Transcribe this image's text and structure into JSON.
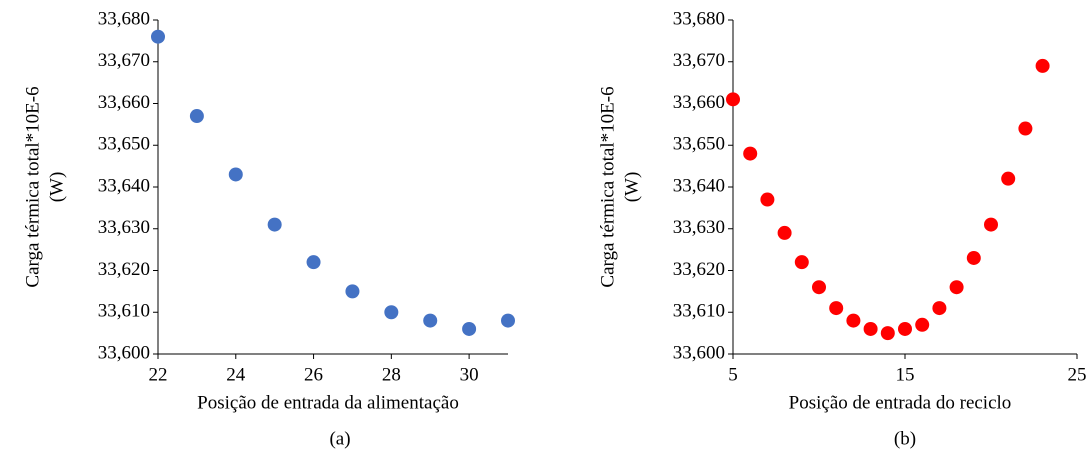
{
  "chart_data": [
    {
      "type": "scatter",
      "caption": "(a)",
      "xlabel": "Posição de entrada da alimentação",
      "ylabel": [
        "Carga térmica total*10E-6",
        "(W)"
      ],
      "x": [
        22,
        23,
        24,
        25,
        26,
        27,
        28,
        29,
        30,
        31
      ],
      "series": [
        {
          "color": "#4472c4",
          "values": [
            33.676,
            33.657,
            33.643,
            33.631,
            33.622,
            33.615,
            33.61,
            33.608,
            33.606,
            33.608
          ]
        }
      ],
      "xlim": [
        22,
        31
      ],
      "xticks": [
        22,
        24,
        26,
        28,
        30
      ],
      "ylim": [
        33.6,
        33.68
      ],
      "yticks": [
        {
          "value": 33.6,
          "label": "33,600"
        },
        {
          "value": 33.61,
          "label": "33,610"
        },
        {
          "value": 33.62,
          "label": "33,620"
        },
        {
          "value": 33.63,
          "label": "33,630"
        },
        {
          "value": 33.64,
          "label": "33,640"
        },
        {
          "value": 33.65,
          "label": "33,650"
        },
        {
          "value": 33.66,
          "label": "33,660"
        },
        {
          "value": 33.67,
          "label": "33,670"
        },
        {
          "value": 33.68,
          "label": "33,680"
        }
      ]
    },
    {
      "type": "scatter",
      "caption": "(b)",
      "xlabel": "Posição de entrada do reciclo",
      "ylabel": [
        "Carga térmica total*10E-6",
        "(W)"
      ],
      "x": [
        5,
        6,
        7,
        8,
        9,
        10,
        11,
        12,
        13,
        14,
        15,
        16,
        17,
        18,
        19,
        20,
        21,
        22,
        23
      ],
      "series": [
        {
          "color": "#ff0000",
          "values": [
            33.661,
            33.648,
            33.637,
            33.629,
            33.622,
            33.616,
            33.611,
            33.608,
            33.606,
            33.605,
            33.606,
            33.607,
            33.611,
            33.616,
            33.623,
            33.631,
            33.642,
            33.654,
            33.669
          ]
        }
      ],
      "xlim": [
        5,
        25
      ],
      "xticks": [
        5,
        15,
        25
      ],
      "ylim": [
        33.6,
        33.68
      ],
      "yticks": [
        {
          "value": 33.6,
          "label": "33,600"
        },
        {
          "value": 33.61,
          "label": "33,610"
        },
        {
          "value": 33.62,
          "label": "33,620"
        },
        {
          "value": 33.63,
          "label": "33,630"
        },
        {
          "value": 33.64,
          "label": "33,640"
        },
        {
          "value": 33.65,
          "label": "33,650"
        },
        {
          "value": 33.66,
          "label": "33,660"
        },
        {
          "value": 33.67,
          "label": "33,670"
        },
        {
          "value": 33.68,
          "label": "33,680"
        }
      ]
    }
  ]
}
